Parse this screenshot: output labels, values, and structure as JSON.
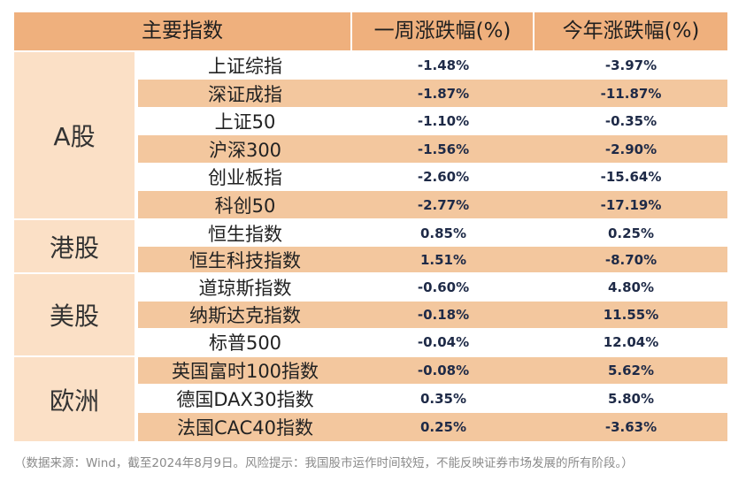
{
  "headers": {
    "index": "主要指数",
    "week": "一周涨跌幅(%)",
    "ytd": "今年涨跌幅(%)"
  },
  "groups": [
    {
      "label": "A股"
    },
    {
      "label": "港股"
    },
    {
      "label": "美股"
    },
    {
      "label": "欧洲"
    }
  ],
  "rows": [
    {
      "name": "上证综指",
      "week": "-1.48%",
      "ytd": "-3.97%"
    },
    {
      "name": "深证成指",
      "week": "-1.87%",
      "ytd": "-11.87%"
    },
    {
      "name": "上证50",
      "week": "-1.10%",
      "ytd": "-0.35%"
    },
    {
      "name": "沪深300",
      "week": "-1.56%",
      "ytd": "-2.90%"
    },
    {
      "name": "创业板指",
      "week": "-2.60%",
      "ytd": "-15.64%"
    },
    {
      "name": "科创50",
      "week": "-2.77%",
      "ytd": "-17.19%"
    },
    {
      "name": "恒生指数",
      "week": "0.85%",
      "ytd": "0.25%"
    },
    {
      "name": "恒生科技指数",
      "week": "1.51%",
      "ytd": "-8.70%"
    },
    {
      "name": "道琼斯指数",
      "week": "-0.60%",
      "ytd": "4.80%"
    },
    {
      "name": "纳斯达克指数",
      "week": "-0.18%",
      "ytd": "11.55%"
    },
    {
      "name": "标普500",
      "week": "-0.04%",
      "ytd": "12.04%"
    },
    {
      "name": "英国富时100指数",
      "week": "-0.08%",
      "ytd": "5.62%"
    },
    {
      "name": "德国DAX30指数",
      "week": "0.35%",
      "ytd": "5.80%"
    },
    {
      "name": "法国CAC40指数",
      "week": "0.25%",
      "ytd": "-3.63%"
    }
  ],
  "note": "（数据来源：Wind，截至2024年8月9日。风险提示：我国股市运作时间较短，不能反映证券市场发展的所有阶段。）"
}
